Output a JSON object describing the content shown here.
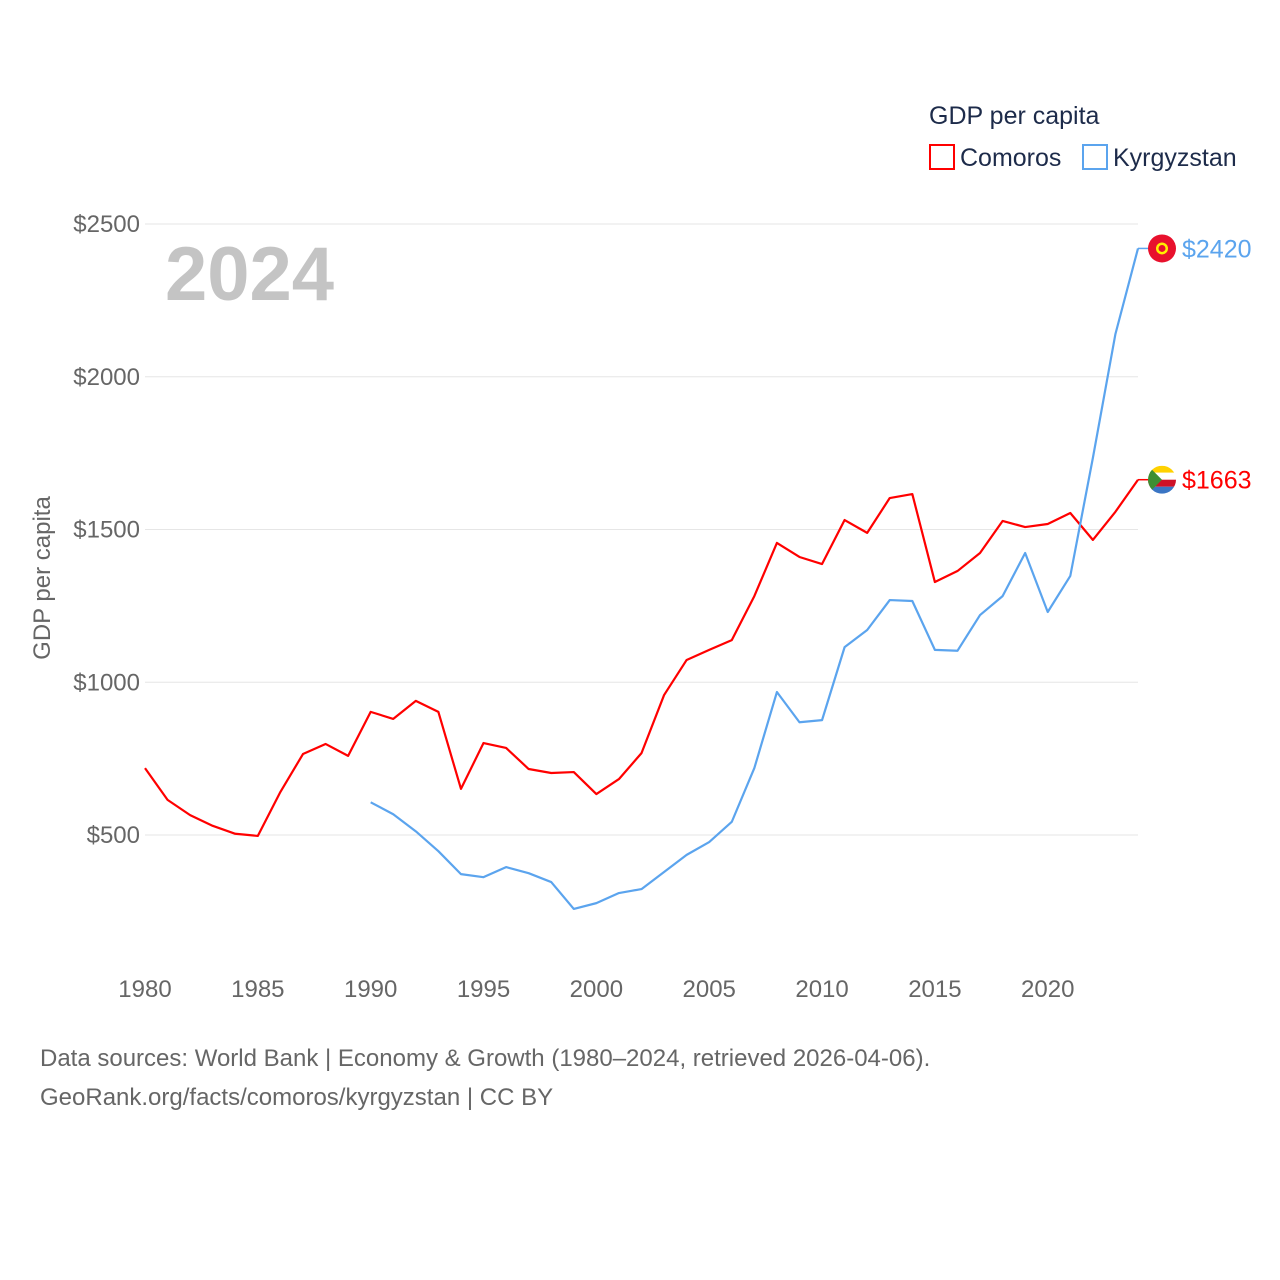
{
  "chart_data": {
    "type": "line",
    "title": "GDP per capita",
    "year_label": "2024",
    "ylabel": "GDP per capita",
    "xlabel": "",
    "xlim": [
      1980,
      2024
    ],
    "ylim": [
      0,
      2500
    ],
    "grid": true,
    "legend_position": "top-right",
    "x_ticks": [
      1980,
      1985,
      1990,
      1995,
      2000,
      2005,
      2010,
      2015,
      2020
    ],
    "y_ticks": [
      500,
      1000,
      1500,
      2000,
      2500
    ],
    "y_tick_labels": [
      "$500",
      "$1000",
      "$1500",
      "$2000",
      "$2500"
    ],
    "series": [
      {
        "name": "Comoros",
        "color": "#ff0000",
        "end_label": "$1663",
        "x": [
          1980,
          1981,
          1982,
          1983,
          1984,
          1985,
          1986,
          1987,
          1988,
          1989,
          1990,
          1991,
          1992,
          1993,
          1994,
          1995,
          1996,
          1997,
          1998,
          1999,
          2000,
          2001,
          2002,
          2003,
          2004,
          2005,
          2006,
          2007,
          2008,
          2009,
          2010,
          2011,
          2012,
          2013,
          2014,
          2015,
          2016,
          2017,
          2018,
          2019,
          2020,
          2021,
          2022,
          2023,
          2024
        ],
        "values": [
          719,
          615,
          565,
          530,
          504,
          497,
          641,
          765,
          798,
          759,
          903,
          880,
          939,
          903,
          651,
          801,
          785,
          716,
          703,
          706,
          634,
          683,
          768,
          958,
          1073,
          1106,
          1138,
          1282,
          1456,
          1410,
          1387,
          1531,
          1489,
          1603,
          1616,
          1328,
          1364,
          1423,
          1528,
          1508,
          1518,
          1554,
          1466,
          1558,
          1663
        ]
      },
      {
        "name": "Kyrgyzstan",
        "color": "#5ba4ee",
        "end_label": "$2420",
        "x": [
          1990,
          1991,
          1992,
          1993,
          1994,
          1995,
          1996,
          1997,
          1998,
          1999,
          2000,
          2001,
          2002,
          2003,
          2004,
          2005,
          2006,
          2007,
          2008,
          2009,
          2010,
          2011,
          2012,
          2013,
          2014,
          2015,
          2016,
          2017,
          2018,
          2019,
          2020,
          2021,
          2022,
          2023,
          2024
        ],
        "values": [
          607,
          568,
          512,
          447,
          372,
          362,
          395,
          375,
          346,
          258,
          277,
          310,
          323,
          379,
          435,
          477,
          543,
          719,
          968,
          869,
          876,
          1115,
          1171,
          1269,
          1266,
          1106,
          1103,
          1220,
          1282,
          1423,
          1230,
          1348,
          1734,
          2140,
          2420
        ]
      }
    ]
  },
  "footer": {
    "line1": "Data sources: World Bank | Economy & Growth (1980–2024, retrieved 2026-04-06).",
    "line2": "GeoRank.org/facts/comoros/kyrgyzstan | CC BY"
  }
}
